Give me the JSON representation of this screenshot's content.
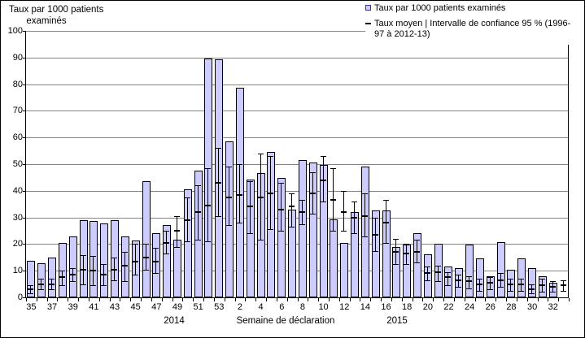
{
  "figure": {
    "ylabel_line1": "Taux par 1000 patients",
    "ylabel_line2": "examinés",
    "xlabel": "Semaine de déclaration",
    "year_left": "2014",
    "year_right": "2015"
  },
  "legend": {
    "items": [
      {
        "marker": "bar-square",
        "label": "Taux par 1000 patients examinés"
      },
      {
        "marker": "mean-dash",
        "line1": "Taux moyen | Intervalle de confiance 95 % (1996-",
        "line2": "97 à 2012-13)"
      }
    ]
  },
  "colors": {
    "bar_fill": "#CCCCFF",
    "bar_border": "#000000",
    "gridline": "#848484",
    "axis": "#000000",
    "errorbar": "#000000",
    "legend_square_border": "#333399",
    "text": "#000000",
    "background": "#FFFFFF"
  },
  "chart_data": {
    "type": "bar",
    "title": "",
    "ylabel": "Taux par 1000 patients examinés",
    "xlabel": "Semaine de déclaration",
    "ylim": [
      0,
      100
    ],
    "ytick_step": 10,
    "grid": true,
    "legend_position": "top-right",
    "series": [
      {
        "name": "Taux par 1000 patients examinés",
        "type": "bar"
      },
      {
        "name": "Taux moyen | Intervalle de confiance 95 % (1996-97 à 2012-13)",
        "type": "errorbar"
      }
    ],
    "xtick_labels": [
      "35",
      "37",
      "39",
      "41",
      "43",
      "45",
      "47",
      "49",
      "51",
      "53",
      "2",
      "4",
      "6",
      "8",
      "10",
      "12",
      "14",
      "16",
      "18",
      "20",
      "22",
      "24",
      "26",
      "28",
      "30",
      "32"
    ],
    "weeks": [
      {
        "year": 2014,
        "week": "35",
        "rate": 13.7,
        "mean": 3.0,
        "ci_low": 1.5,
        "ci_high": 4.5
      },
      {
        "year": 2014,
        "week": "36",
        "rate": 12.7,
        "mean": 5.0,
        "ci_low": 3.0,
        "ci_high": 7.0
      },
      {
        "year": 2014,
        "week": "37",
        "rate": 15.0,
        "mean": 5.0,
        "ci_low": 3.0,
        "ci_high": 7.0
      },
      {
        "year": 2014,
        "week": "38",
        "rate": 20.5,
        "mean": 7.5,
        "ci_low": 4.5,
        "ci_high": 10.0
      },
      {
        "year": 2014,
        "week": "39",
        "rate": 23.0,
        "mean": 8.5,
        "ci_low": 6.0,
        "ci_high": 11.0
      },
      {
        "year": 2014,
        "week": "40",
        "rate": 29.0,
        "mean": 10.5,
        "ci_low": 5.0,
        "ci_high": 16.0
      },
      {
        "year": 2014,
        "week": "41",
        "rate": 28.7,
        "mean": 10.0,
        "ci_low": 4.5,
        "ci_high": 15.5
      },
      {
        "year": 2014,
        "week": "42",
        "rate": 27.7,
        "mean": 8.5,
        "ci_low": 4.5,
        "ci_high": 12.5
      },
      {
        "year": 2014,
        "week": "43",
        "rate": 29.0,
        "mean": 10.5,
        "ci_low": 6.5,
        "ci_high": 15.0
      },
      {
        "year": 2014,
        "week": "44",
        "rate": 23.0,
        "mean": 12.0,
        "ci_low": 6.0,
        "ci_high": 17.0
      },
      {
        "year": 2014,
        "week": "45",
        "rate": 21.3,
        "mean": 13.5,
        "ci_low": 8.5,
        "ci_high": 20.0
      },
      {
        "year": 2014,
        "week": "46",
        "rate": 43.5,
        "mean": 15.0,
        "ci_low": 10.5,
        "ci_high": 20.0
      },
      {
        "year": 2014,
        "week": "47",
        "rate": 24.0,
        "mean": 13.5,
        "ci_low": 9.0,
        "ci_high": 18.5
      },
      {
        "year": 2014,
        "week": "48",
        "rate": 27.0,
        "mean": 20.5,
        "ci_low": 16.5,
        "ci_high": 25.0
      },
      {
        "year": 2014,
        "week": "49",
        "rate": 21.5,
        "mean": 25.0,
        "ci_low": 19.0,
        "ci_high": 30.5
      },
      {
        "year": 2014,
        "week": "50",
        "rate": 40.5,
        "mean": 29.0,
        "ci_low": 21.0,
        "ci_high": 37.5
      },
      {
        "year": 2014,
        "week": "51",
        "rate": 47.5,
        "mean": 32.0,
        "ci_low": 21.5,
        "ci_high": 42.0
      },
      {
        "year": 2014,
        "week": "52",
        "rate": 89.7,
        "mean": 34.5,
        "ci_low": 21.0,
        "ci_high": 48.5
      },
      {
        "year": 2014,
        "week": "53",
        "rate": 89.3,
        "mean": 43.0,
        "ci_low": 30.5,
        "ci_high": 56.0
      },
      {
        "year": 2015,
        "week": "1",
        "rate": 58.5,
        "mean": 37.5,
        "ci_low": 27.0,
        "ci_high": 49.0
      },
      {
        "year": 2015,
        "week": "2",
        "rate": 78.8,
        "mean": 38.5,
        "ci_low": 28.0,
        "ci_high": 50.0
      },
      {
        "year": 2015,
        "week": "3",
        "rate": 44.2,
        "mean": 34.0,
        "ci_low": 24.0,
        "ci_high": 43.5
      },
      {
        "year": 2015,
        "week": "4",
        "rate": 46.5,
        "mean": 37.5,
        "ci_low": 21.5,
        "ci_high": 54.0
      },
      {
        "year": 2015,
        "week": "5",
        "rate": 54.5,
        "mean": 39.0,
        "ci_low": 25.5,
        "ci_high": 53.0
      },
      {
        "year": 2015,
        "week": "6",
        "rate": 44.7,
        "mean": 33.0,
        "ci_low": 25.0,
        "ci_high": 43.0
      },
      {
        "year": 2015,
        "week": "7",
        "rate": 33.0,
        "mean": 34.0,
        "ci_low": 26.5,
        "ci_high": 39.0
      },
      {
        "year": 2015,
        "week": "8",
        "rate": 51.5,
        "mean": 32.0,
        "ci_low": 27.5,
        "ci_high": 36.5
      },
      {
        "year": 2015,
        "week": "9",
        "rate": 50.5,
        "mean": 39.0,
        "ci_low": 31.5,
        "ci_high": 47.0
      },
      {
        "year": 2015,
        "week": "10",
        "rate": 49.8,
        "mean": 44.0,
        "ci_low": 36.0,
        "ci_high": 53.0
      },
      {
        "year": 2015,
        "week": "11",
        "rate": 29.3,
        "mean": 36.5,
        "ci_low": 25.0,
        "ci_high": 48.5
      },
      {
        "year": 2015,
        "week": "12",
        "rate": 20.3,
        "mean": 32.0,
        "ci_low": 25.0,
        "ci_high": 40.0
      },
      {
        "year": 2015,
        "week": "13",
        "rate": 32.0,
        "mean": 30.0,
        "ci_low": 24.0,
        "ci_high": 36.0
      },
      {
        "year": 2015,
        "week": "14",
        "rate": 49.0,
        "mean": 30.5,
        "ci_low": 23.0,
        "ci_high": 39.0
      },
      {
        "year": 2015,
        "week": "15",
        "rate": 32.5,
        "mean": 23.5,
        "ci_low": 17.5,
        "ci_high": 30.0
      },
      {
        "year": 2015,
        "week": "16",
        "rate": 32.5,
        "mean": 28.0,
        "ci_low": 20.5,
        "ci_high": 36.5
      },
      {
        "year": 2015,
        "week": "17",
        "rate": 19.0,
        "mean": 17.0,
        "ci_low": 12.5,
        "ci_high": 22.0
      },
      {
        "year": 2015,
        "week": "18",
        "rate": 19.8,
        "mean": 16.5,
        "ci_low": 12.5,
        "ci_high": 20.0
      },
      {
        "year": 2015,
        "week": "19",
        "rate": 24.0,
        "mean": 17.0,
        "ci_low": 13.0,
        "ci_high": 21.5
      },
      {
        "year": 2015,
        "week": "20",
        "rate": 16.3,
        "mean": 9.0,
        "ci_low": 6.5,
        "ci_high": 11.5
      },
      {
        "year": 2015,
        "week": "21",
        "rate": 20.0,
        "mean": 9.5,
        "ci_low": 6.0,
        "ci_high": 12.0
      },
      {
        "year": 2015,
        "week": "22",
        "rate": 11.5,
        "mean": 7.5,
        "ci_low": 4.5,
        "ci_high": 9.5
      },
      {
        "year": 2015,
        "week": "23",
        "rate": 11.0,
        "mean": 6.5,
        "ci_low": 4.0,
        "ci_high": 8.5
      },
      {
        "year": 2015,
        "week": "24",
        "rate": 19.8,
        "mean": 6.0,
        "ci_low": 3.5,
        "ci_high": 8.0
      },
      {
        "year": 2015,
        "week": "25",
        "rate": 14.5,
        "mean": 5.0,
        "ci_low": 2.5,
        "ci_high": 7.0
      },
      {
        "year": 2015,
        "week": "26",
        "rate": 8.0,
        "mean": 5.5,
        "ci_low": 3.0,
        "ci_high": 7.5
      },
      {
        "year": 2015,
        "week": "27",
        "rate": 20.8,
        "mean": 6.5,
        "ci_low": 4.0,
        "ci_high": 9.0
      },
      {
        "year": 2015,
        "week": "28",
        "rate": 10.5,
        "mean": 5.0,
        "ci_low": 2.5,
        "ci_high": 7.0
      },
      {
        "year": 2015,
        "week": "29",
        "rate": 14.5,
        "mean": 5.0,
        "ci_low": 2.5,
        "ci_high": 7.0
      },
      {
        "year": 2015,
        "week": "30",
        "rate": 11.0,
        "mean": 3.0,
        "ci_low": 1.5,
        "ci_high": 5.0
      },
      {
        "year": 2015,
        "week": "31",
        "rate": 8.0,
        "mean": 4.5,
        "ci_low": 2.0,
        "ci_high": 7.0
      },
      {
        "year": 2015,
        "week": "32",
        "rate": 5.5,
        "mean": 4.0,
        "ci_low": 2.0,
        "ci_high": 6.0
      },
      {
        "year": 2015,
        "week": "33",
        "rate": 0,
        "mean": 4.5,
        "ci_low": 2.5,
        "ci_high": 6.5
      }
    ]
  }
}
